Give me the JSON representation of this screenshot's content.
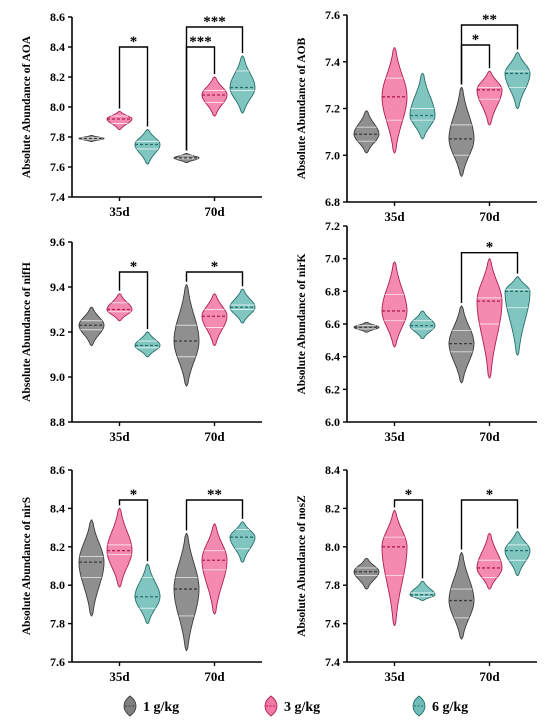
{
  "chart_data": [
    {
      "type": "violin",
      "ylabel": "Absolute Abundance of AOA",
      "ylim": [
        7.4,
        8.6
      ],
      "yticks": [
        "7.4",
        "7.6",
        "7.8",
        "8.0",
        "8.2",
        "8.4",
        "8.6"
      ],
      "categories": [
        "35d",
        "70d"
      ],
      "series": [
        {
          "name": "1 g/kg",
          "median": [
            7.79,
            7.66
          ],
          "q1": [
            7.785,
            7.655
          ],
          "q3": [
            7.795,
            7.675
          ],
          "range": [
            [
              7.77,
              7.81
            ],
            [
              7.63,
              7.69
            ]
          ]
        },
        {
          "name": "3 g/kg",
          "median": [
            7.92,
            8.08
          ],
          "q1": [
            7.89,
            8.03
          ],
          "q3": [
            7.94,
            8.11
          ],
          "range": [
            [
              7.85,
              7.97
            ],
            [
              7.94,
              8.2
            ]
          ]
        },
        {
          "name": "6 g/kg",
          "median": [
            7.75,
            8.13
          ],
          "q1": [
            7.72,
            8.11
          ],
          "q3": [
            7.77,
            8.24
          ],
          "range": [
            [
              7.62,
              7.85
            ],
            [
              7.96,
              8.34
            ]
          ]
        }
      ],
      "significance": [
        {
          "group": 0,
          "from": 1,
          "to": 2,
          "label": "*"
        },
        {
          "group": 1,
          "from": 0,
          "to": 1,
          "label": "***"
        },
        {
          "group": 1,
          "from": 0,
          "to": 2,
          "label": "***"
        }
      ]
    },
    {
      "type": "violin",
      "ylabel": "Absolute Abundance of AOB",
      "ylim": [
        6.8,
        7.6
      ],
      "yticks": [
        "6.8",
        "7.0",
        "7.2",
        "7.4",
        "7.6"
      ],
      "categories": [
        "35d",
        "70d"
      ],
      "series": [
        {
          "name": "1 g/kg",
          "median": [
            7.09,
            7.07
          ],
          "q1": [
            7.06,
            7.0
          ],
          "q3": [
            7.12,
            7.13
          ],
          "range": [
            [
              7.01,
              7.19
            ],
            [
              6.91,
              7.29
            ]
          ]
        },
        {
          "name": "3 g/kg",
          "median": [
            7.25,
            7.28
          ],
          "q1": [
            7.15,
            7.24
          ],
          "q3": [
            7.33,
            7.29
          ],
          "range": [
            [
              7.01,
              7.46
            ],
            [
              7.13,
              7.36
            ]
          ]
        },
        {
          "name": "6 g/kg",
          "median": [
            7.17,
            7.35
          ],
          "q1": [
            7.15,
            7.29
          ],
          "q3": [
            7.2,
            7.36
          ],
          "range": [
            [
              7.07,
              7.35
            ],
            [
              7.2,
              7.44
            ]
          ]
        }
      ],
      "significance": [
        {
          "group": 1,
          "from": 0,
          "to": 1,
          "label": "*"
        },
        {
          "group": 1,
          "from": 0,
          "to": 2,
          "label": "**"
        }
      ]
    },
    {
      "type": "violin",
      "ylabel": "Absolute Abundance of nifH",
      "ylim": [
        8.8,
        9.6
      ],
      "yticks": [
        "8.8",
        "9.0",
        "9.2",
        "9.4",
        "9.6"
      ],
      "categories": [
        "35d",
        "70d"
      ],
      "series": [
        {
          "name": "1 g/kg",
          "median": [
            9.23,
            9.16
          ],
          "q1": [
            9.21,
            9.09
          ],
          "q3": [
            9.25,
            9.23
          ],
          "range": [
            [
              9.14,
              9.31
            ],
            [
              8.96,
              9.41
            ]
          ]
        },
        {
          "name": "3 g/kg",
          "median": [
            9.3,
            9.27
          ],
          "q1": [
            9.29,
            9.22
          ],
          "q3": [
            9.33,
            9.3
          ],
          "range": [
            [
              9.25,
              9.37
            ],
            [
              9.14,
              9.37
            ]
          ]
        },
        {
          "name": "6 g/kg",
          "median": [
            9.14,
            9.31
          ],
          "q1": [
            9.13,
            9.3
          ],
          "q3": [
            9.16,
            9.32
          ],
          "range": [
            [
              9.09,
              9.2
            ],
            [
              9.24,
              9.39
            ]
          ]
        }
      ],
      "significance": [
        {
          "group": 0,
          "from": 1,
          "to": 2,
          "label": "*"
        },
        {
          "group": 1,
          "from": 0,
          "to": 2,
          "label": "*"
        }
      ]
    },
    {
      "type": "violin",
      "ylabel": "Absolute Abundance of nirK",
      "ylim": [
        6.0,
        7.2
      ],
      "yticks": [
        "6.0",
        "6.2",
        "6.4",
        "6.6",
        "6.8",
        "7.0",
        "7.2"
      ],
      "categories": [
        "35d",
        "70d"
      ],
      "series": [
        {
          "name": "1 g/kg",
          "median": [
            6.58,
            6.48
          ],
          "q1": [
            6.57,
            6.43
          ],
          "q3": [
            6.59,
            6.56
          ],
          "range": [
            [
              6.55,
              6.61
            ],
            [
              6.24,
              6.71
            ]
          ]
        },
        {
          "name": "3 g/kg",
          "median": [
            6.68,
            6.74
          ],
          "q1": [
            6.62,
            6.6
          ],
          "q3": [
            6.78,
            6.76
          ],
          "range": [
            [
              6.46,
              6.98
            ],
            [
              6.27,
              7.0
            ]
          ]
        },
        {
          "name": "6 g/kg",
          "median": [
            6.59,
            6.8
          ],
          "q1": [
            6.57,
            6.7
          ],
          "q3": [
            6.62,
            6.81
          ],
          "range": [
            [
              6.51,
              6.68
            ],
            [
              6.41,
              6.89
            ]
          ]
        }
      ],
      "significance": [
        {
          "group": 1,
          "from": 0,
          "to": 2,
          "label": "*"
        }
      ]
    },
    {
      "type": "violin",
      "ylabel": "Absolute Abundance of nirS",
      "ylim": [
        7.6,
        8.6
      ],
      "yticks": [
        "7.6",
        "7.8",
        "8.0",
        "8.2",
        "8.4",
        "8.6"
      ],
      "categories": [
        "35d",
        "70d"
      ],
      "series": [
        {
          "name": "1 g/kg",
          "median": [
            8.12,
            7.98
          ],
          "q1": [
            8.04,
            7.84
          ],
          "q3": [
            8.15,
            8.04
          ],
          "range": [
            [
              7.84,
              8.34
            ],
            [
              7.66,
              8.27
            ]
          ]
        },
        {
          "name": "3 g/kg",
          "median": [
            8.18,
            8.13
          ],
          "q1": [
            8.16,
            8.08
          ],
          "q3": [
            8.21,
            8.18
          ],
          "range": [
            [
              7.99,
              8.4
            ],
            [
              7.85,
              8.32
            ]
          ]
        },
        {
          "name": "6 g/kg",
          "median": [
            7.94,
            8.25
          ],
          "q1": [
            7.88,
            8.19
          ],
          "q3": [
            8.04,
            8.29
          ],
          "range": [
            [
              7.8,
              8.11
            ],
            [
              8.12,
              8.33
            ]
          ]
        }
      ],
      "significance": [
        {
          "group": 0,
          "from": 1,
          "to": 2,
          "label": "*"
        },
        {
          "group": 1,
          "from": 0,
          "to": 2,
          "label": "**"
        }
      ]
    },
    {
      "type": "violin",
      "ylabel": "Absolute Abundance of nosZ",
      "ylim": [
        7.4,
        8.4
      ],
      "yticks": [
        "7.4",
        "7.6",
        "7.8",
        "8.0",
        "8.2",
        "8.4"
      ],
      "categories": [
        "35d",
        "70d"
      ],
      "series": [
        {
          "name": "1 g/kg",
          "median": [
            7.87,
            7.72
          ],
          "q1": [
            7.85,
            7.63
          ],
          "q3": [
            7.89,
            7.78
          ],
          "range": [
            [
              7.78,
              7.94
            ],
            [
              7.52,
              7.97
            ]
          ]
        },
        {
          "name": "3 g/kg",
          "median": [
            8.0,
            7.89
          ],
          "q1": [
            7.85,
            7.84
          ],
          "q3": [
            8.05,
            7.93
          ],
          "range": [
            [
              7.59,
              8.19
            ],
            [
              7.78,
              8.07
            ]
          ]
        },
        {
          "name": "6 g/kg",
          "median": [
            7.75,
            7.98
          ],
          "q1": [
            7.74,
            7.93
          ],
          "q3": [
            7.76,
            8.01
          ],
          "range": [
            [
              7.72,
              7.82
            ],
            [
              7.85,
              8.08
            ]
          ]
        }
      ],
      "significance": [
        {
          "group": 0,
          "from": 1,
          "to": 2,
          "label": "*"
        },
        {
          "group": 1,
          "from": 0,
          "to": 2,
          "label": "*"
        }
      ]
    }
  ],
  "legend": {
    "placement": "bottom",
    "items": [
      {
        "label": "1 g/kg",
        "color": "#808080"
      },
      {
        "label": "3 g/kg",
        "color": "#f37aa4"
      },
      {
        "label": "6 g/kg",
        "color": "#6fbdb8"
      }
    ]
  },
  "colors": {
    "1 g/kg": {
      "fill": "#808080",
      "line": "#3a3a3a"
    },
    "3 g/kg": {
      "fill": "#f37aa4",
      "line": "#b01c55"
    },
    "6 g/kg": {
      "fill": "#6fbdb8",
      "line": "#246f6a"
    }
  }
}
